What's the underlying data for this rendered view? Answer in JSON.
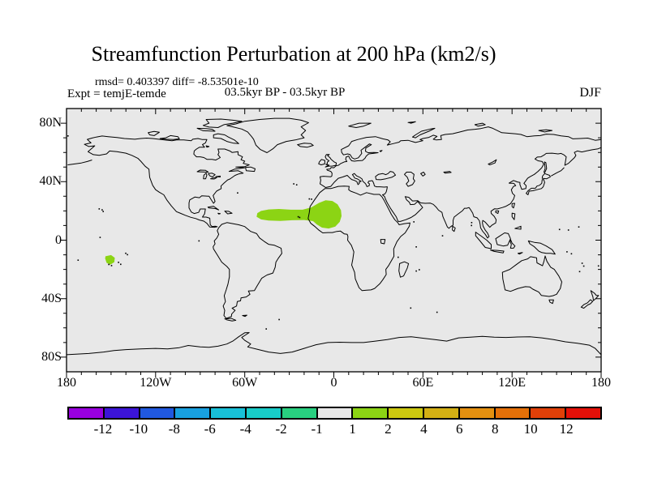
{
  "header": {
    "title": "Streamfunction Perturbation at 200 hPa (km2/s)",
    "stats": "rmsd= 0.403397 diff= -8.53501e-10",
    "experiment": "Expt = temjE-temde",
    "period": "03.5kyr BP - 03.5kyr BP",
    "season": "DJF"
  },
  "chart_data": {
    "type": "filled-contour-map",
    "projection": "equirectangular",
    "variable": "Streamfunction Perturbation",
    "pressure_level": "200 hPa",
    "units": "km2/s",
    "rmsd": 0.403397,
    "diff": -8.53501e-10,
    "lon_range": [
      -180,
      180
    ],
    "lat_range": [
      -90,
      90
    ],
    "x_ticks": {
      "labels": [
        "180",
        "120W",
        "60W",
        "0",
        "60E",
        "120E",
        "180"
      ],
      "lons": [
        -180,
        -120,
        -60,
        0,
        60,
        120,
        180
      ]
    },
    "y_ticks": {
      "labels": [
        "80N",
        "40N",
        "0",
        "40S",
        "80S"
      ],
      "lats": [
        80,
        40,
        0,
        -40,
        -80
      ]
    },
    "minor_tick_interval_deg": 10,
    "map_background": "#E8E8E8",
    "coastline_color": "#000000",
    "colorbar": {
      "levels": [
        -12,
        -10,
        -8,
        -6,
        -4,
        -2,
        -1,
        1,
        2,
        4,
        6,
        8,
        10,
        12
      ],
      "colors": [
        "#9900E0",
        "#3C14D8",
        "#2058E0",
        "#18A0E0",
        "#18C0D8",
        "#18CCC8",
        "#28D080",
        "#E8E8E8",
        "#8CD414",
        "#CCC810",
        "#D4B014",
        "#E49010",
        "#E47008",
        "#E04008",
        "#E41008"
      ]
    },
    "anomaly_regions": [
      {
        "name": "atlantic-west-africa-positive",
        "value_range": [
          1,
          2
        ],
        "color": "#8CD414",
        "polygon_lonlat": [
          [
            -52,
            16
          ],
          [
            -51.5,
            18.5
          ],
          [
            -49,
            20
          ],
          [
            -44,
            21
          ],
          [
            -37,
            21.3
          ],
          [
            -29,
            20.8
          ],
          [
            -21,
            20.8
          ],
          [
            -15,
            22.5
          ],
          [
            -10,
            25.5
          ],
          [
            -5.5,
            27.3
          ],
          [
            -1,
            26.8
          ],
          [
            2.5,
            24.5
          ],
          [
            4.8,
            20.5
          ],
          [
            5.2,
            16.5
          ],
          [
            4,
            12.5
          ],
          [
            1,
            9.3
          ],
          [
            -3.5,
            8
          ],
          [
            -8,
            8.6
          ],
          [
            -11.5,
            10.8
          ],
          [
            -14,
            13
          ],
          [
            -20,
            13.8
          ],
          [
            -28,
            13.6
          ],
          [
            -36,
            13.2
          ],
          [
            -44,
            13.4
          ],
          [
            -49,
            14.2
          ]
        ]
      },
      {
        "name": "south-pacific-positive",
        "value_range": [
          1,
          2
        ],
        "color": "#8CD414",
        "polygon_lonlat": [
          [
            -153.8,
            -11
          ],
          [
            -150,
            -10.2
          ],
          [
            -147.5,
            -12
          ],
          [
            -147.8,
            -15
          ],
          [
            -150.5,
            -16.8
          ],
          [
            -153,
            -15.5
          ],
          [
            -154,
            -12.5
          ]
        ]
      }
    ]
  }
}
